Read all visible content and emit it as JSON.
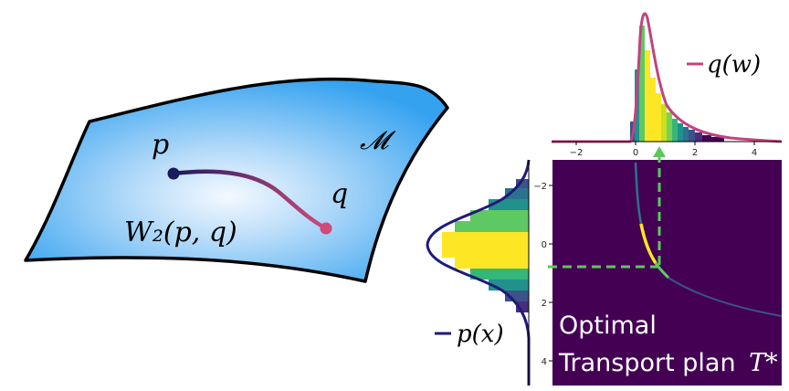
{
  "manifold": {
    "label_M": "𝓜",
    "label_p": "p",
    "label_q": "q",
    "distance_label": "W₂(p, q)",
    "colors": {
      "surface_center": "#f2f8ff",
      "surface_edge": "#33a1f0",
      "point_p": "#1a1a5e",
      "point_q": "#d04a7a"
    }
  },
  "top_plot": {
    "legend_label": "q(w)",
    "ticks": [
      "−2",
      "0",
      "2",
      "4"
    ],
    "line_color": "#c2437b"
  },
  "left_plot": {
    "legend_label": "p(x)",
    "ticks": [
      "−2",
      "0",
      "2",
      "4"
    ],
    "line_color": "#1f1a78"
  },
  "plan": {
    "title_line1": "Optimal",
    "title_line2": "Transport plan",
    "title_symbol": "T*",
    "background": "#440154",
    "guide_color": "#5cc85a"
  }
}
